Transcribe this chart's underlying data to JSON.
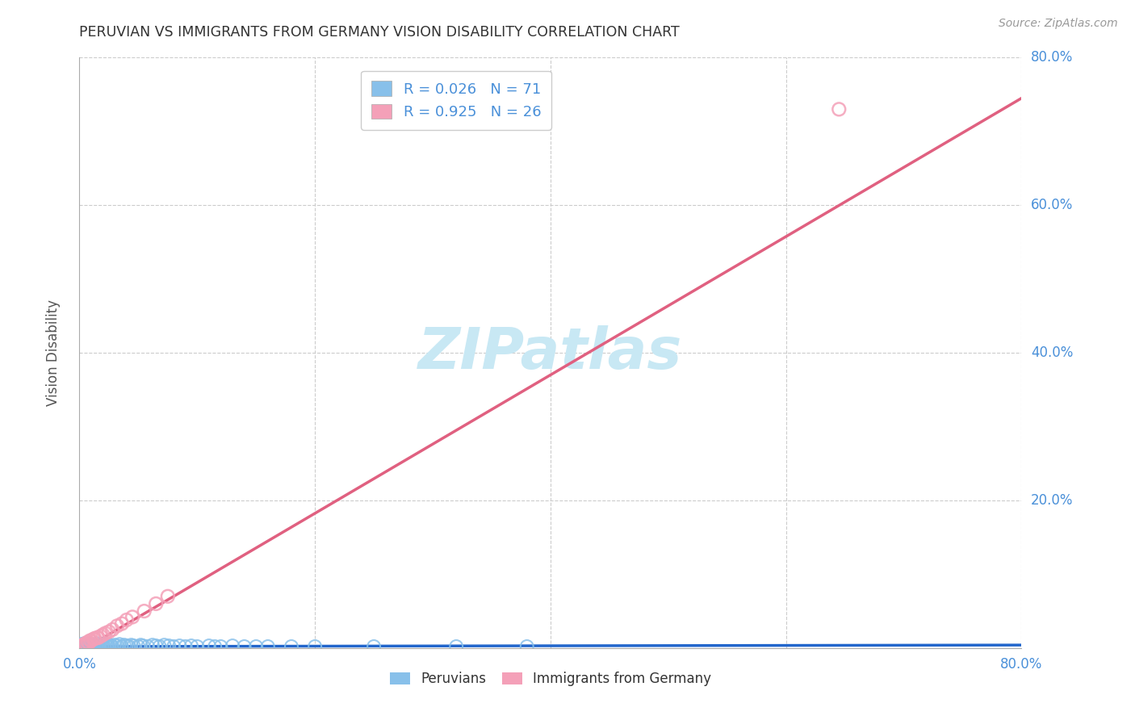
{
  "title": "PERUVIAN VS IMMIGRANTS FROM GERMANY VISION DISABILITY CORRELATION CHART",
  "source": "Source: ZipAtlas.com",
  "ylabel": "Vision Disability",
  "xlim": [
    0.0,
    0.8
  ],
  "ylim": [
    0.0,
    0.8
  ],
  "blue_color": "#88C0EA",
  "pink_color": "#F4A0B8",
  "blue_line_color": "#2266CC",
  "pink_line_color": "#E06080",
  "R_blue": 0.026,
  "N_blue": 71,
  "R_pink": 0.925,
  "N_pink": 26,
  "watermark_text": "ZIPatlas",
  "watermark_color": "#C8E8F4",
  "background_color": "#ffffff",
  "grid_color": "#cccccc",
  "title_color": "#333333",
  "tick_label_color": "#4a90d9",
  "ylabel_color": "#555555",
  "source_color": "#999999",
  "legend_text_color": "#4a90d9",
  "bottom_legend_color": "#333333",
  "pink_line_x_start": 0.0,
  "pink_line_y_start": -0.005,
  "pink_line_x_end": 0.8,
  "pink_line_y_end": 0.745,
  "blue_line_x_start": 0.0,
  "blue_line_y_start": 0.002,
  "blue_line_x_end": 0.8,
  "blue_line_y_end": 0.004,
  "blue_scatter_x": [
    0.001,
    0.002,
    0.003,
    0.003,
    0.004,
    0.004,
    0.005,
    0.005,
    0.006,
    0.006,
    0.007,
    0.007,
    0.008,
    0.008,
    0.009,
    0.01,
    0.01,
    0.011,
    0.012,
    0.013,
    0.014,
    0.015,
    0.015,
    0.016,
    0.017,
    0.018,
    0.019,
    0.02,
    0.021,
    0.022,
    0.023,
    0.024,
    0.025,
    0.026,
    0.027,
    0.028,
    0.03,
    0.032,
    0.034,
    0.036,
    0.038,
    0.04,
    0.042,
    0.044,
    0.046,
    0.05,
    0.052,
    0.054,
    0.058,
    0.062,
    0.065,
    0.068,
    0.072,
    0.076,
    0.08,
    0.085,
    0.09,
    0.095,
    0.1,
    0.11,
    0.115,
    0.12,
    0.13,
    0.14,
    0.15,
    0.16,
    0.18,
    0.2,
    0.25,
    0.32,
    0.38
  ],
  "blue_scatter_y": [
    0.003,
    0.005,
    0.002,
    0.004,
    0.003,
    0.006,
    0.002,
    0.004,
    0.003,
    0.005,
    0.002,
    0.004,
    0.003,
    0.005,
    0.002,
    0.003,
    0.005,
    0.002,
    0.004,
    0.003,
    0.002,
    0.004,
    0.006,
    0.003,
    0.002,
    0.004,
    0.003,
    0.005,
    0.002,
    0.004,
    0.003,
    0.005,
    0.002,
    0.004,
    0.003,
    0.002,
    0.004,
    0.003,
    0.005,
    0.002,
    0.004,
    0.003,
    0.002,
    0.004,
    0.003,
    0.002,
    0.004,
    0.003,
    0.002,
    0.004,
    0.003,
    0.002,
    0.004,
    0.003,
    0.002,
    0.003,
    0.002,
    0.003,
    0.002,
    0.003,
    0.002,
    0.002,
    0.003,
    0.002,
    0.002,
    0.002,
    0.002,
    0.002,
    0.002,
    0.002,
    0.002
  ],
  "pink_scatter_x": [
    0.002,
    0.003,
    0.004,
    0.005,
    0.006,
    0.007,
    0.008,
    0.009,
    0.01,
    0.012,
    0.013,
    0.015,
    0.016,
    0.018,
    0.02,
    0.022,
    0.025,
    0.028,
    0.032,
    0.036,
    0.04,
    0.045,
    0.055,
    0.065,
    0.075,
    0.645
  ],
  "pink_scatter_y": [
    0.003,
    0.004,
    0.005,
    0.006,
    0.005,
    0.008,
    0.007,
    0.01,
    0.01,
    0.012,
    0.013,
    0.014,
    0.014,
    0.016,
    0.018,
    0.02,
    0.022,
    0.025,
    0.03,
    0.033,
    0.038,
    0.042,
    0.05,
    0.06,
    0.07,
    0.73
  ]
}
